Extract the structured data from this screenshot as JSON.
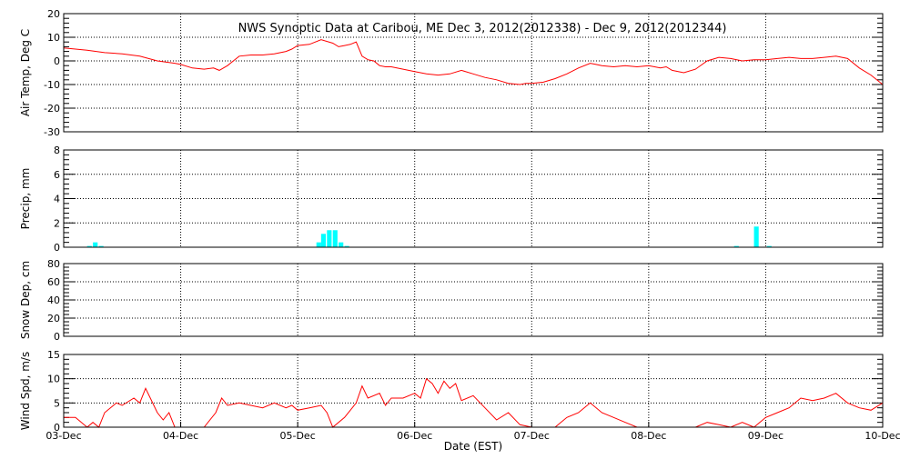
{
  "chart_data": {
    "type": "line",
    "title": "NWS Synoptic Data at Caribou, ME   Dec  3, 2012(2012338) - Dec  9, 2012(2012344)",
    "xlabel": "Date (EST)",
    "x_ticks": [
      "03-Dec",
      "04-Dec",
      "05-Dec",
      "06-Dec",
      "07-Dec",
      "08-Dec",
      "09-Dec",
      "10-Dec"
    ],
    "xlim": [
      0,
      7
    ],
    "colors": {
      "line": "#ff0000",
      "precip": "#00ffff",
      "grid": "#000000"
    },
    "panels": [
      {
        "id": "air-temp",
        "type": "line",
        "ylabel": "Air Temp, Deg C",
        "ylim": [
          -30,
          20
        ],
        "yticks": [
          -30,
          -20,
          -10,
          0,
          10,
          20
        ],
        "series": {
          "x": [
            0,
            0.1,
            0.2,
            0.35,
            0.5,
            0.65,
            0.8,
            0.95,
            1.0,
            1.1,
            1.2,
            1.28,
            1.33,
            1.4,
            1.45,
            1.5,
            1.6,
            1.7,
            1.8,
            1.9,
            1.95,
            2.0,
            2.1,
            2.2,
            2.3,
            2.35,
            2.4,
            2.45,
            2.5,
            2.55,
            2.6,
            2.65,
            2.7,
            2.75,
            2.8,
            2.9,
            3.0,
            3.1,
            3.2,
            3.3,
            3.4,
            3.5,
            3.6,
            3.7,
            3.8,
            3.9,
            3.95,
            4.0,
            4.1,
            4.2,
            4.3,
            4.4,
            4.5,
            4.55,
            4.6,
            4.7,
            4.8,
            4.9,
            5.0,
            5.1,
            5.15,
            5.2,
            5.3,
            5.4,
            5.5,
            5.6,
            5.7,
            5.8,
            5.9,
            6.0,
            6.1,
            6.2,
            6.3,
            6.4,
            6.5,
            6.6,
            6.7,
            6.8,
            6.9,
            7.0
          ],
          "y": [
            5.5,
            5,
            4.5,
            3.5,
            3,
            2,
            0,
            -1,
            -1.5,
            -3,
            -3.5,
            -3,
            -4,
            -2,
            0,
            2,
            2.5,
            2.5,
            3,
            4,
            5,
            6.5,
            7,
            9,
            7.5,
            6,
            6.5,
            7,
            8,
            2,
            0.5,
            0,
            -2,
            -2.5,
            -2.5,
            -3.5,
            -4.5,
            -5.5,
            -6,
            -5.5,
            -4,
            -5.5,
            -7,
            -8,
            -9.5,
            -10,
            -9.5,
            -9.5,
            -9,
            -7.5,
            -5.5,
            -3,
            -1,
            -1.5,
            -2,
            -2.5,
            -2,
            -2.5,
            -2,
            -3,
            -2.5,
            -4,
            -5,
            -3.5,
            0,
            1.5,
            1,
            0,
            0.5,
            0.5,
            1,
            1.5,
            1,
            1,
            1.5,
            2,
            1,
            -3,
            -6,
            -10
          ]
        }
      },
      {
        "id": "precip",
        "type": "bar",
        "ylabel": "Precip, mm",
        "ylim": [
          0,
          8
        ],
        "yticks": [
          0,
          2,
          4,
          6,
          8
        ],
        "bar_width": 0.04,
        "bars": [
          {
            "x": 0.22,
            "value": 0.1
          },
          {
            "x": 0.27,
            "value": 0.4
          },
          {
            "x": 0.32,
            "value": 0.1
          },
          {
            "x": 2.18,
            "value": 0.4
          },
          {
            "x": 2.22,
            "value": 1.1
          },
          {
            "x": 2.27,
            "value": 1.4
          },
          {
            "x": 2.32,
            "value": 1.4
          },
          {
            "x": 2.37,
            "value": 0.4
          },
          {
            "x": 2.42,
            "value": 0.1
          },
          {
            "x": 5.75,
            "value": 0.1
          },
          {
            "x": 5.92,
            "value": 1.7
          },
          {
            "x": 6.03,
            "value": 0.1
          }
        ]
      },
      {
        "id": "snow-depth",
        "type": "line",
        "ylabel": "Snow Dep, cm",
        "ylim": [
          0,
          80
        ],
        "yticks": [
          0,
          20,
          40,
          60,
          80
        ],
        "series": {
          "x": [],
          "y": []
        }
      },
      {
        "id": "wind-speed",
        "type": "line",
        "ylabel": "Wind Spd, m/s",
        "ylim": [
          0,
          15
        ],
        "yticks": [
          0,
          5,
          10,
          15
        ],
        "series": {
          "x": [
            0,
            0.1,
            0.2,
            0.25,
            0.3,
            0.35,
            0.45,
            0.5,
            0.6,
            0.65,
            0.7,
            0.8,
            0.85,
            0.9,
            0.95,
            1.0,
            1.1,
            1.2,
            1.3,
            1.35,
            1.4,
            1.5,
            1.6,
            1.7,
            1.8,
            1.9,
            1.95,
            2.0,
            2.1,
            2.2,
            2.25,
            2.3,
            2.4,
            2.5,
            2.55,
            2.6,
            2.7,
            2.75,
            2.8,
            2.9,
            3.0,
            3.05,
            3.1,
            3.15,
            3.2,
            3.25,
            3.3,
            3.35,
            3.4,
            3.5,
            3.6,
            3.7,
            3.8,
            3.9,
            4.0,
            4.2,
            4.3,
            4.4,
            4.5,
            4.6,
            4.7,
            4.8,
            4.9,
            5.0,
            5.2,
            5.4,
            5.5,
            5.6,
            5.7,
            5.8,
            5.9,
            6.0,
            6.1,
            6.2,
            6.3,
            6.4,
            6.5,
            6.6,
            6.7,
            6.8,
            6.9,
            7.0
          ],
          "y": [
            2,
            2,
            0,
            1,
            0,
            3,
            5,
            4.5,
            6,
            5,
            8,
            3,
            1.5,
            3,
            0,
            0,
            0,
            0,
            3,
            6,
            4.5,
            5,
            4.5,
            4,
            5,
            4,
            4.5,
            3.5,
            4,
            4.5,
            3,
            0,
            2,
            5,
            8.5,
            6,
            7,
            4.5,
            6,
            6,
            7,
            6,
            10,
            9,
            7,
            9.5,
            8,
            9,
            5.5,
            6.5,
            4,
            1.5,
            3,
            0.5,
            0,
            0,
            2,
            3,
            5,
            3,
            2,
            1,
            0,
            0,
            0,
            0,
            1,
            0.5,
            0,
            1,
            0,
            2,
            3,
            4,
            6,
            5.5,
            6,
            7,
            5,
            4,
            3.5,
            5
          ]
        }
      }
    ]
  }
}
